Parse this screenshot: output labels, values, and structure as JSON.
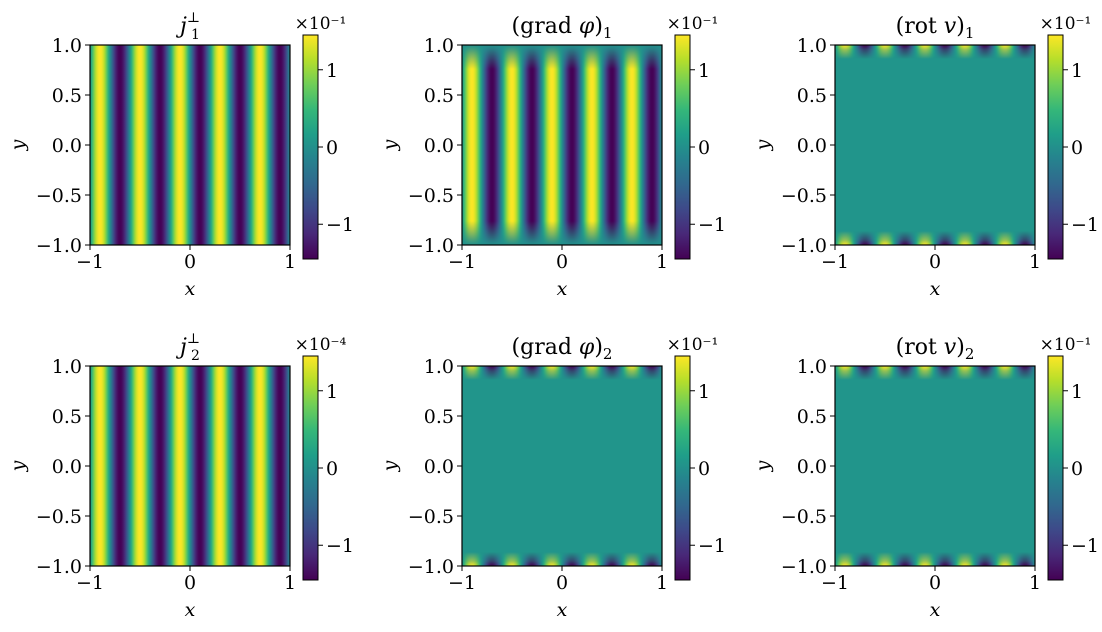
{
  "colorscale": "viridis",
  "colorscale_stops": [
    "#440154",
    "#482878",
    "#3e4989",
    "#31688e",
    "#26828e",
    "#1f9e89",
    "#35b779",
    "#6ece58",
    "#b5de2b",
    "#fde725"
  ],
  "chart_data": [
    {
      "type": "heatmap",
      "id": "j1",
      "title": "j₁^⊥",
      "xlabel": "x",
      "ylabel": "y",
      "xlim": [
        -1,
        1
      ],
      "ylim": [
        -1,
        1
      ],
      "xticks": [
        "−1",
        "0",
        "1"
      ],
      "yticks": [
        "−1.0",
        "−0.5",
        "0.0",
        "0.5",
        "1.0"
      ],
      "field": "vertical stripes, 5 periods across x, uniform in y",
      "stripe_periods_x": 5,
      "stripe_amplitude": 1.45,
      "colorbar_range": [
        -1.45,
        1.45
      ],
      "colorbar_ticks": [
        "1",
        "0",
        "−1"
      ],
      "colorbar_scale": "×10⁻¹"
    },
    {
      "type": "heatmap",
      "id": "grad1",
      "title": "(grad φ)₁",
      "xlabel": "x",
      "ylabel": "y",
      "xlim": [
        -1,
        1
      ],
      "ylim": [
        -1,
        1
      ],
      "xticks": [
        "−1",
        "0",
        "1"
      ],
      "yticks": [
        "−1.0",
        "−0.5",
        "0.0",
        "0.5",
        "1.0"
      ],
      "field": "vertical stripes fading to zero at y = ±1",
      "stripe_periods_x": 5,
      "stripe_amplitude": 1.45,
      "colorbar_range": [
        -1.45,
        1.45
      ],
      "colorbar_ticks": [
        "1",
        "0",
        "−1"
      ],
      "colorbar_scale": "×10⁻¹"
    },
    {
      "type": "heatmap",
      "id": "rot1",
      "title": "(rot v)₁",
      "xlabel": "x",
      "ylabel": "y",
      "xlim": [
        -1,
        1
      ],
      "ylim": [
        -1,
        1
      ],
      "xticks": [
        "−1",
        "0",
        "1"
      ],
      "yticks": [
        "−1.0",
        "−0.5",
        "0.0",
        "0.5",
        "1.0"
      ],
      "field": "near zero interior, boundary layers at y = ±1",
      "stripe_periods_x": 5,
      "stripe_amplitude": 1.45,
      "colorbar_range": [
        -1.45,
        1.45
      ],
      "colorbar_ticks": [
        "1",
        "0",
        "−1"
      ],
      "colorbar_scale": "×10⁻¹"
    },
    {
      "type": "heatmap",
      "id": "j2",
      "title": "j₂^⊥",
      "xlabel": "x",
      "ylabel": "y",
      "xlim": [
        -1,
        1
      ],
      "ylim": [
        -1,
        1
      ],
      "xticks": [
        "−1",
        "0",
        "1"
      ],
      "yticks": [
        "−1.0",
        "−0.5",
        "0.0",
        "0.5",
        "1.0"
      ],
      "field": "vertical stripes, 5 periods across x, uniform in y",
      "stripe_periods_x": 5,
      "stripe_amplitude": 1.45,
      "colorbar_range": [
        -1.45,
        1.45
      ],
      "colorbar_ticks": [
        "1",
        "0",
        "−1"
      ],
      "colorbar_scale": "×10⁻⁴"
    },
    {
      "type": "heatmap",
      "id": "grad2",
      "title": "(grad φ)₂",
      "xlabel": "x",
      "ylabel": "y",
      "xlim": [
        -1,
        1
      ],
      "ylim": [
        -1,
        1
      ],
      "xticks": [
        "−1",
        "0",
        "1"
      ],
      "yticks": [
        "−1.0",
        "−0.5",
        "0.0",
        "0.5",
        "1.0"
      ],
      "field": "near zero interior, boundary layers at y = ±1",
      "stripe_periods_x": 5,
      "stripe_amplitude": 1.45,
      "colorbar_range": [
        -1.45,
        1.45
      ],
      "colorbar_ticks": [
        "1",
        "0",
        "−1"
      ],
      "colorbar_scale": "×10⁻¹"
    },
    {
      "type": "heatmap",
      "id": "rot2",
      "title": "(rot v)₂",
      "xlabel": "x",
      "ylabel": "y",
      "xlim": [
        -1,
        1
      ],
      "ylim": [
        -1,
        1
      ],
      "xticks": [
        "−1",
        "0",
        "1"
      ],
      "yticks": [
        "−1.0",
        "−0.5",
        "0.0",
        "0.5",
        "1.0"
      ],
      "field": "near zero interior, boundary layers at y = ±1",
      "stripe_periods_x": 5,
      "stripe_amplitude": 1.45,
      "colorbar_range": [
        -1.45,
        1.45
      ],
      "colorbar_ticks": [
        "1",
        "0",
        "−1"
      ],
      "colorbar_scale": "×10⁻¹"
    }
  ]
}
